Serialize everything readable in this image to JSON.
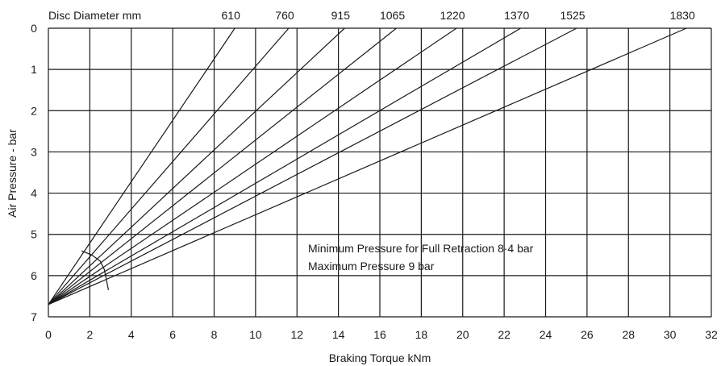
{
  "chart_data": {
    "type": "line",
    "title": "",
    "xlabel": "Braking Torque kNm",
    "ylabel": "Air Pressure - bar",
    "series_header": "Disc Diameter mm",
    "xlim": [
      0,
      32
    ],
    "ylim": [
      0,
      7
    ],
    "y_inverted": true,
    "grid": true,
    "x_ticks": [
      "0",
      "2",
      "4",
      "6",
      "8",
      "10",
      "12",
      "14",
      "16",
      "18",
      "20",
      "22",
      "24",
      "26",
      "28",
      "30",
      "32"
    ],
    "y_ticks": [
      "0",
      "1",
      "2",
      "3",
      "4",
      "5",
      "6",
      "7"
    ],
    "series": [
      {
        "name": "610",
        "x": [
          0,
          9.0
        ],
        "y": [
          6.7,
          0
        ]
      },
      {
        "name": "760",
        "x": [
          0,
          11.6
        ],
        "y": [
          6.7,
          0
        ]
      },
      {
        "name": "915",
        "x": [
          0,
          14.3
        ],
        "y": [
          6.7,
          0
        ]
      },
      {
        "name": "1065",
        "x": [
          0,
          16.8
        ],
        "y": [
          6.7,
          0
        ]
      },
      {
        "name": "1220",
        "x": [
          0,
          19.7
        ],
        "y": [
          6.7,
          0
        ]
      },
      {
        "name": "1370",
        "x": [
          0,
          22.8
        ],
        "y": [
          6.7,
          0
        ]
      },
      {
        "name": "1525",
        "x": [
          0,
          25.5
        ],
        "y": [
          6.7,
          0
        ]
      },
      {
        "name": "1830",
        "x": [
          0,
          30.8
        ],
        "y": [
          6.7,
          0
        ]
      }
    ],
    "boundary_curve": {
      "x": [
        1.6,
        2.1,
        2.5,
        2.7,
        2.8,
        2.9
      ],
      "y": [
        5.4,
        5.5,
        5.65,
        5.85,
        6.1,
        6.35
      ]
    },
    "annotations": [
      "Minimum Pressure for Full Retraction 8·4 bar",
      "Maximum Pressure 9 bar"
    ]
  }
}
